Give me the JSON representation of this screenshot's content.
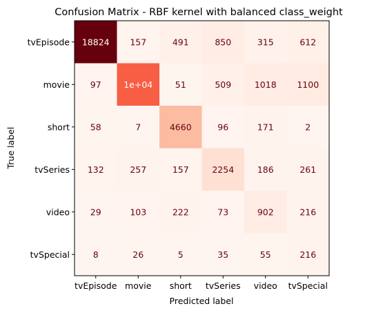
{
  "chart_data": {
    "type": "heatmap",
    "title": "Confusion Matrix - RBF kernel with balanced class_weight",
    "xlabel": "Predicted label",
    "ylabel": "True label",
    "categories": [
      "tvEpisode",
      "movie",
      "short",
      "tvSeries",
      "video",
      "tvSpecial"
    ],
    "values": [
      [
        18824,
        157,
        491,
        850,
        315,
        612
      ],
      [
        97,
        10000,
        51,
        509,
        1018,
        1100
      ],
      [
        58,
        7,
        4660,
        96,
        171,
        2
      ],
      [
        132,
        257,
        157,
        2254,
        186,
        261
      ],
      [
        29,
        103,
        222,
        73,
        902,
        216
      ],
      [
        8,
        26,
        5,
        35,
        55,
        216
      ]
    ],
    "labels": [
      [
        "18824",
        "157",
        "491",
        "850",
        "315",
        "612"
      ],
      [
        "97",
        "1e+04",
        "51",
        "509",
        "1018",
        "1100"
      ],
      [
        "58",
        "7",
        "4660",
        "96",
        "171",
        "2"
      ],
      [
        "132",
        "257",
        "157",
        "2254",
        "186",
        "261"
      ],
      [
        "29",
        "103",
        "222",
        "73",
        "902",
        "216"
      ],
      [
        "8",
        "26",
        "5",
        "35",
        "55",
        "216"
      ]
    ],
    "colormap": "Reds",
    "dark_text_color": "#67000d",
    "light_text_color": "#ffffff",
    "grid": false
  }
}
